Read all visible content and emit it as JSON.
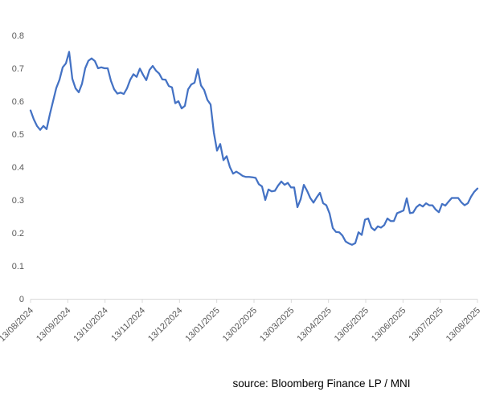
{
  "chart": {
    "source_caption": "source: Bloomberg Finance LP / MNI"
  },
  "chart_data": {
    "type": "line",
    "x_range": [
      "13/08/2024",
      "13/08/2025"
    ],
    "x_tick_labels": [
      "13/08/2024",
      "13/09/2024",
      "13/10/2024",
      "13/11/2024",
      "13/12/2024",
      "13/01/2025",
      "13/02/2025",
      "13/03/2025",
      "13/04/2025",
      "13/05/2025",
      "13/06/2025",
      "13/07/2025",
      "13/08/2025"
    ],
    "y_tick_labels": [
      "0",
      "0.1",
      "0.2",
      "0.3",
      "0.4",
      "0.5",
      "0.6",
      "0.7",
      "0.8"
    ],
    "ylim": [
      0,
      0.8
    ],
    "grid": false,
    "legend": false,
    "line_color": "#4472C4",
    "axis_color": "#D9D9D9",
    "tick_label_color": "#595959",
    "background_color": "#FFFFFF",
    "values": [
      0.572,
      0.545,
      0.525,
      0.513,
      0.525,
      0.515,
      0.56,
      0.6,
      0.64,
      0.665,
      0.703,
      0.715,
      0.75,
      0.668,
      0.639,
      0.627,
      0.653,
      0.7,
      0.723,
      0.73,
      0.722,
      0.7,
      0.703,
      0.7,
      0.7,
      0.662,
      0.636,
      0.623,
      0.626,
      0.622,
      0.639,
      0.665,
      0.682,
      0.674,
      0.699,
      0.68,
      0.664,
      0.695,
      0.707,
      0.693,
      0.684,
      0.666,
      0.665,
      0.646,
      0.642,
      0.594,
      0.6,
      0.578,
      0.586,
      0.636,
      0.651,
      0.656,
      0.697,
      0.648,
      0.634,
      0.604,
      0.59,
      0.505,
      0.45,
      0.47,
      0.421,
      0.433,
      0.4,
      0.38,
      0.386,
      0.38,
      0.373,
      0.37,
      0.37,
      0.369,
      0.367,
      0.348,
      0.341,
      0.3,
      0.332,
      0.326,
      0.328,
      0.344,
      0.356,
      0.346,
      0.352,
      0.338,
      0.338,
      0.278,
      0.302,
      0.346,
      0.328,
      0.306,
      0.292,
      0.308,
      0.322,
      0.29,
      0.284,
      0.259,
      0.215,
      0.203,
      0.202,
      0.192,
      0.174,
      0.168,
      0.164,
      0.169,
      0.202,
      0.194,
      0.24,
      0.244,
      0.216,
      0.208,
      0.22,
      0.216,
      0.224,
      0.244,
      0.236,
      0.236,
      0.26,
      0.264,
      0.268,
      0.305,
      0.26,
      0.262,
      0.278,
      0.286,
      0.28,
      0.29,
      0.284,
      0.284,
      0.271,
      0.263,
      0.288,
      0.283,
      0.295,
      0.306,
      0.306,
      0.306,
      0.293,
      0.284,
      0.29,
      0.31,
      0.325,
      0.335
    ]
  }
}
